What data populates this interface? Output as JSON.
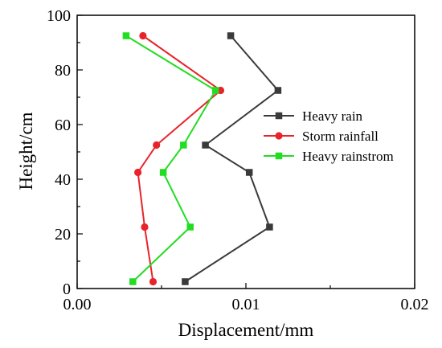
{
  "chart_data": {
    "type": "line",
    "title": "",
    "xlabel": "Displacement/mm",
    "ylabel": "Height/cm",
    "xlim": [
      0.0,
      0.02
    ],
    "ylim": [
      0,
      100
    ],
    "x_ticks": [
      0.0,
      0.01,
      0.02
    ],
    "x_tick_labels": [
      "0.00",
      "0.01",
      "0.02"
    ],
    "y_ticks": [
      0,
      20,
      40,
      60,
      80,
      100
    ],
    "y_tick_labels": [
      "0",
      "20",
      "40",
      "60",
      "80",
      "100"
    ],
    "grid": false,
    "legend_position": "right",
    "series": [
      {
        "name": "Heavy rain",
        "color": "#3a3a3a",
        "marker": "square",
        "points": [
          {
            "x": 0.0064,
            "y": 2.5
          },
          {
            "x": 0.0114,
            "y": 22.5
          },
          {
            "x": 0.0102,
            "y": 42.5
          },
          {
            "x": 0.0076,
            "y": 52.5
          },
          {
            "x": 0.0119,
            "y": 72.5
          },
          {
            "x": 0.0091,
            "y": 92.5
          }
        ]
      },
      {
        "name": "Storm rainfall",
        "color": "#e8242a",
        "marker": "circle",
        "points": [
          {
            "x": 0.0045,
            "y": 2.5
          },
          {
            "x": 0.004,
            "y": 22.5
          },
          {
            "x": 0.0036,
            "y": 42.5
          },
          {
            "x": 0.0047,
            "y": 52.5
          },
          {
            "x": 0.0085,
            "y": 72.5
          },
          {
            "x": 0.0039,
            "y": 92.5
          }
        ]
      },
      {
        "name": "Heavy rainstrom",
        "color": "#22dd22",
        "marker": "square",
        "points": [
          {
            "x": 0.0033,
            "y": 2.5
          },
          {
            "x": 0.0067,
            "y": 22.5
          },
          {
            "x": 0.0051,
            "y": 42.5
          },
          {
            "x": 0.0063,
            "y": 52.5
          },
          {
            "x": 0.0082,
            "y": 72.5
          },
          {
            "x": 0.0029,
            "y": 92.5
          }
        ]
      }
    ]
  }
}
